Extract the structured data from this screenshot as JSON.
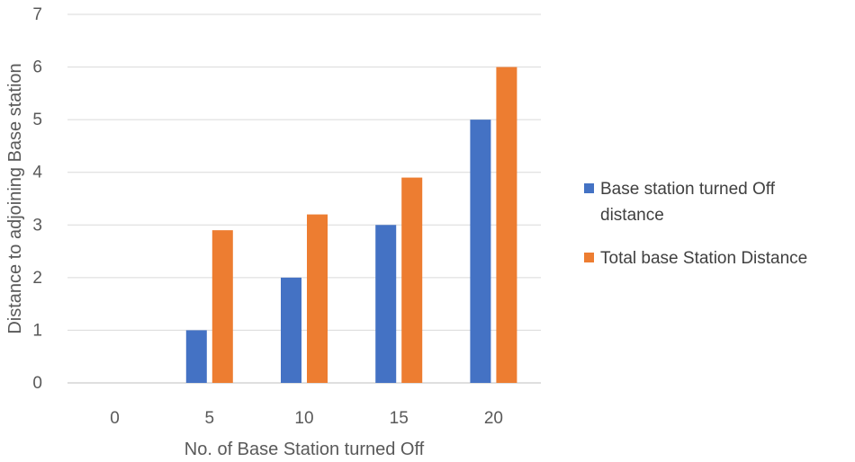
{
  "chart_data": {
    "type": "bar",
    "categories": [
      "0",
      "5",
      "10",
      "15",
      "20"
    ],
    "series": [
      {
        "name": "Base station turned Off distance",
        "name_lines": [
          "Base station turned Off",
          "distance"
        ],
        "color": "#4472c4",
        "values": [
          0,
          1,
          2,
          3,
          5
        ]
      },
      {
        "name": "Total base Station Distance",
        "name_lines": [
          "Total base Station Distance"
        ],
        "color": "#ed7d31",
        "values": [
          0,
          2.9,
          3.2,
          3.9,
          6
        ]
      }
    ],
    "xlabel": "No. of Base Station turned  Off",
    "ylabel": "Distance to adjoining Base station",
    "ylim": [
      0,
      7
    ],
    "yticks": [
      "0",
      "1",
      "2",
      "3",
      "4",
      "5",
      "6",
      "7"
    ],
    "grid": true,
    "legend_position": "right"
  }
}
